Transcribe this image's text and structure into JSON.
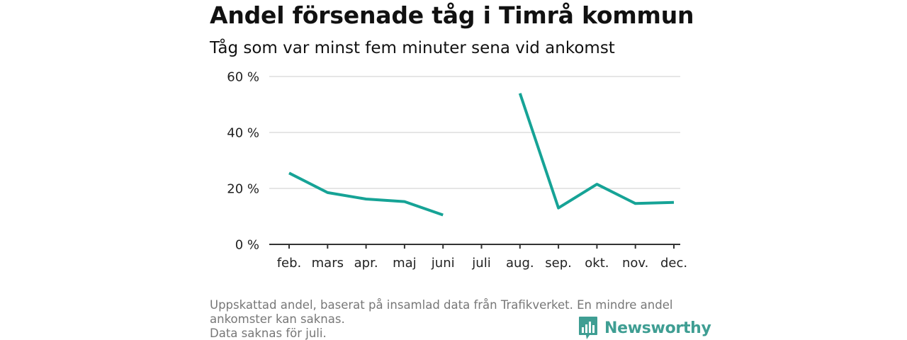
{
  "header": {
    "title": "Andel försenade tåg i Timrå kommun",
    "subtitle": "Tåg som var minst fem minuter sena vid ankomst"
  },
  "chart_data": {
    "type": "line",
    "title": "Andel försenade tåg i Timrå kommun",
    "subtitle": "Tåg som var minst fem minuter sena vid ankomst",
    "categories": [
      "feb.",
      "mars",
      "apr.",
      "maj",
      "juni",
      "juli",
      "aug.",
      "sep.",
      "okt.",
      "nov.",
      "dec."
    ],
    "series": [
      {
        "values": [
          25.5,
          18.5,
          16.2,
          15.3,
          10.5,
          null,
          54.0,
          13.0,
          21.5,
          14.6,
          15.0
        ]
      }
    ],
    "ylim": [
      0,
      60
    ],
    "yticks": [
      0,
      20,
      40,
      60
    ],
    "ytick_labels": [
      "0 %",
      "20 %",
      "40 %",
      "60 %"
    ],
    "xlabel": "",
    "ylabel": "",
    "grid": true,
    "line_color": "#16a396"
  },
  "footer": {
    "note_line1": "Uppskattad andel, baserat på insamlad data från Trafikverket. En mindre andel",
    "note_line2": "ankomster kan saknas.",
    "note_line3": "Data saknas för juli.",
    "logo_text": "Newsworthy",
    "logo_icon": "bar-chart-speech-bubble-icon",
    "logo_color": "#3f9e93"
  }
}
